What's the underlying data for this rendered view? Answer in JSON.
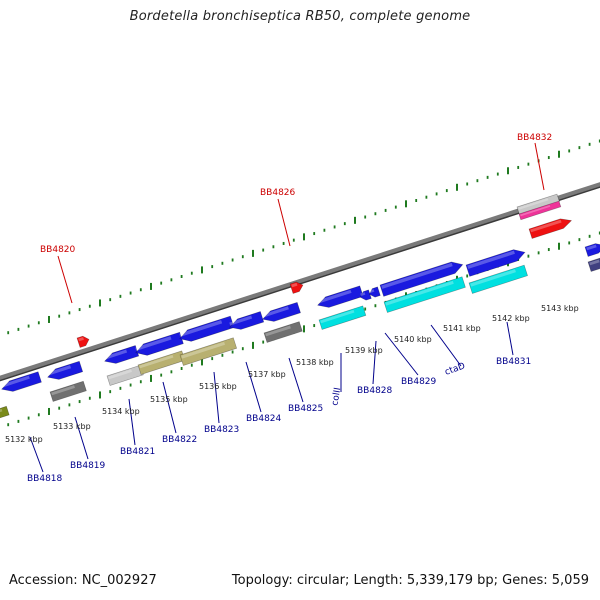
{
  "title": "Bordetella bronchiseptica RB50, complete genome",
  "footer": {
    "accession": "Accession: NC_002927",
    "summary": "Topology: circular; Length: 5,339,179 bp; Genes: 5,059"
  },
  "colors": {
    "backbone": "#7a7a7a",
    "tick": "#1f7a1f",
    "highlight_label": "#cc0000",
    "gene_label": "#00008b",
    "kbp_label": "#222222",
    "blue": "#1a1adf",
    "cyan": "#00e0e0",
    "khaki": "#b8b070",
    "grey": "#707070",
    "lightgrey": "#c8c8c8",
    "red": "#ee1111",
    "pink": "#ee3399",
    "olive": "#7a8a1a",
    "navy": "#404080"
  },
  "kbp_labels": [
    "5132 kbp",
    "5133 kbp",
    "5134 kbp",
    "5135 kbp",
    "5136 kbp",
    "5137 kbp",
    "5138 kbp",
    "5139 kbp",
    "5140 kbp",
    "5141 kbp",
    "5142 kbp",
    "5143 kbp"
  ],
  "highlight_labels": [
    "BB4820",
    "BB4826",
    "BB4832"
  ],
  "gene_labels": [
    "BB4818",
    "BB4819",
    "BB4821",
    "BB4822",
    "BB4823",
    "BB4824",
    "BB4825",
    "colII",
    "BB4828",
    "BB4829",
    "ctaD",
    "BB4831"
  ]
}
